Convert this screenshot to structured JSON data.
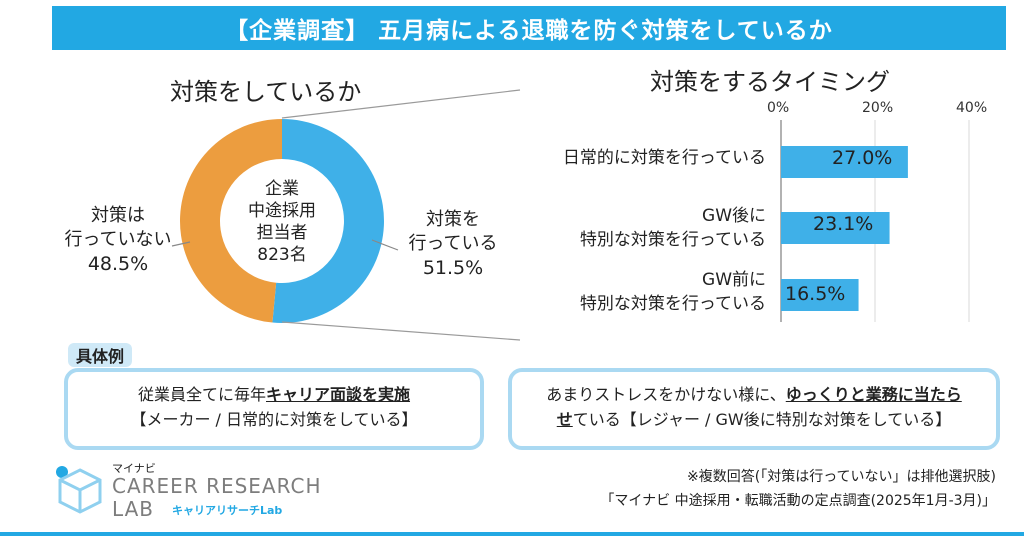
{
  "header": {
    "title": "【企業調査】 五月病による退職を防ぐ対策をしているか"
  },
  "donut": {
    "title": "対策をしているか",
    "center": [
      "企業",
      "中途採用",
      "担当者",
      "823名"
    ],
    "left_label": [
      "対策は",
      "行っていない"
    ],
    "left_pct": "48.5%",
    "right_label": [
      "対策を",
      "行っている"
    ],
    "right_pct": "51.5%"
  },
  "bars": {
    "title": "対策をするタイミング",
    "ticks": [
      "0%",
      "20%",
      "40%"
    ],
    "cat0": [
      "日常的に対策を行っている"
    ],
    "cat1": [
      "GW後に",
      "特別な対策を行っている"
    ],
    "cat2": [
      "GW前に",
      "特別な対策を行っている"
    ],
    "val_labels": [
      "27.0%",
      "23.1%",
      "16.5%"
    ]
  },
  "chart_data": [
    {
      "type": "pie",
      "title": "対策をしているか",
      "labels": [
        "対策を行っている",
        "対策は行っていない"
      ],
      "values": [
        51.5,
        48.5
      ],
      "colors": [
        "#3fb0e8",
        "#ec9d3f"
      ]
    },
    {
      "type": "bar",
      "orientation": "horizontal",
      "title": "対策をするタイミング",
      "categories": [
        "日常的に対策を行っている",
        "GW後に特別な対策を行っている",
        "GW前に特別な対策を行っている"
      ],
      "values": [
        27.0,
        23.1,
        16.5
      ],
      "xlim": [
        0,
        40
      ],
      "color": "#3fb0e8"
    }
  ],
  "examples": {
    "tag": "具体例",
    "box1_line1_pre": "従業員全てに毎年",
    "box1_line1_bold": "キャリア面談を実施",
    "box1_line2": "【メーカー / 日常的に対策をしている】",
    "box2_line1_pre": "あまりストレスをかけない様に、",
    "box2_line1_bold": "ゆっくりと業務に当たら",
    "box2_line2_bold": "せ",
    "box2_line2_rest": "ている【レジャー / GW後に特別な対策をしている】"
  },
  "footer": {
    "note1": "※複数回答(「対策は行っていない」は排他選択肢)",
    "note2": "「マイナビ 中途採用・転職活動の定点調査(2025年1月-3月)」",
    "logo_small": "マイナビ",
    "logo_line1": "CAREER RESEARCH",
    "logo_line2": "LAB",
    "logo_sub": "キャリアリサーチLab"
  }
}
